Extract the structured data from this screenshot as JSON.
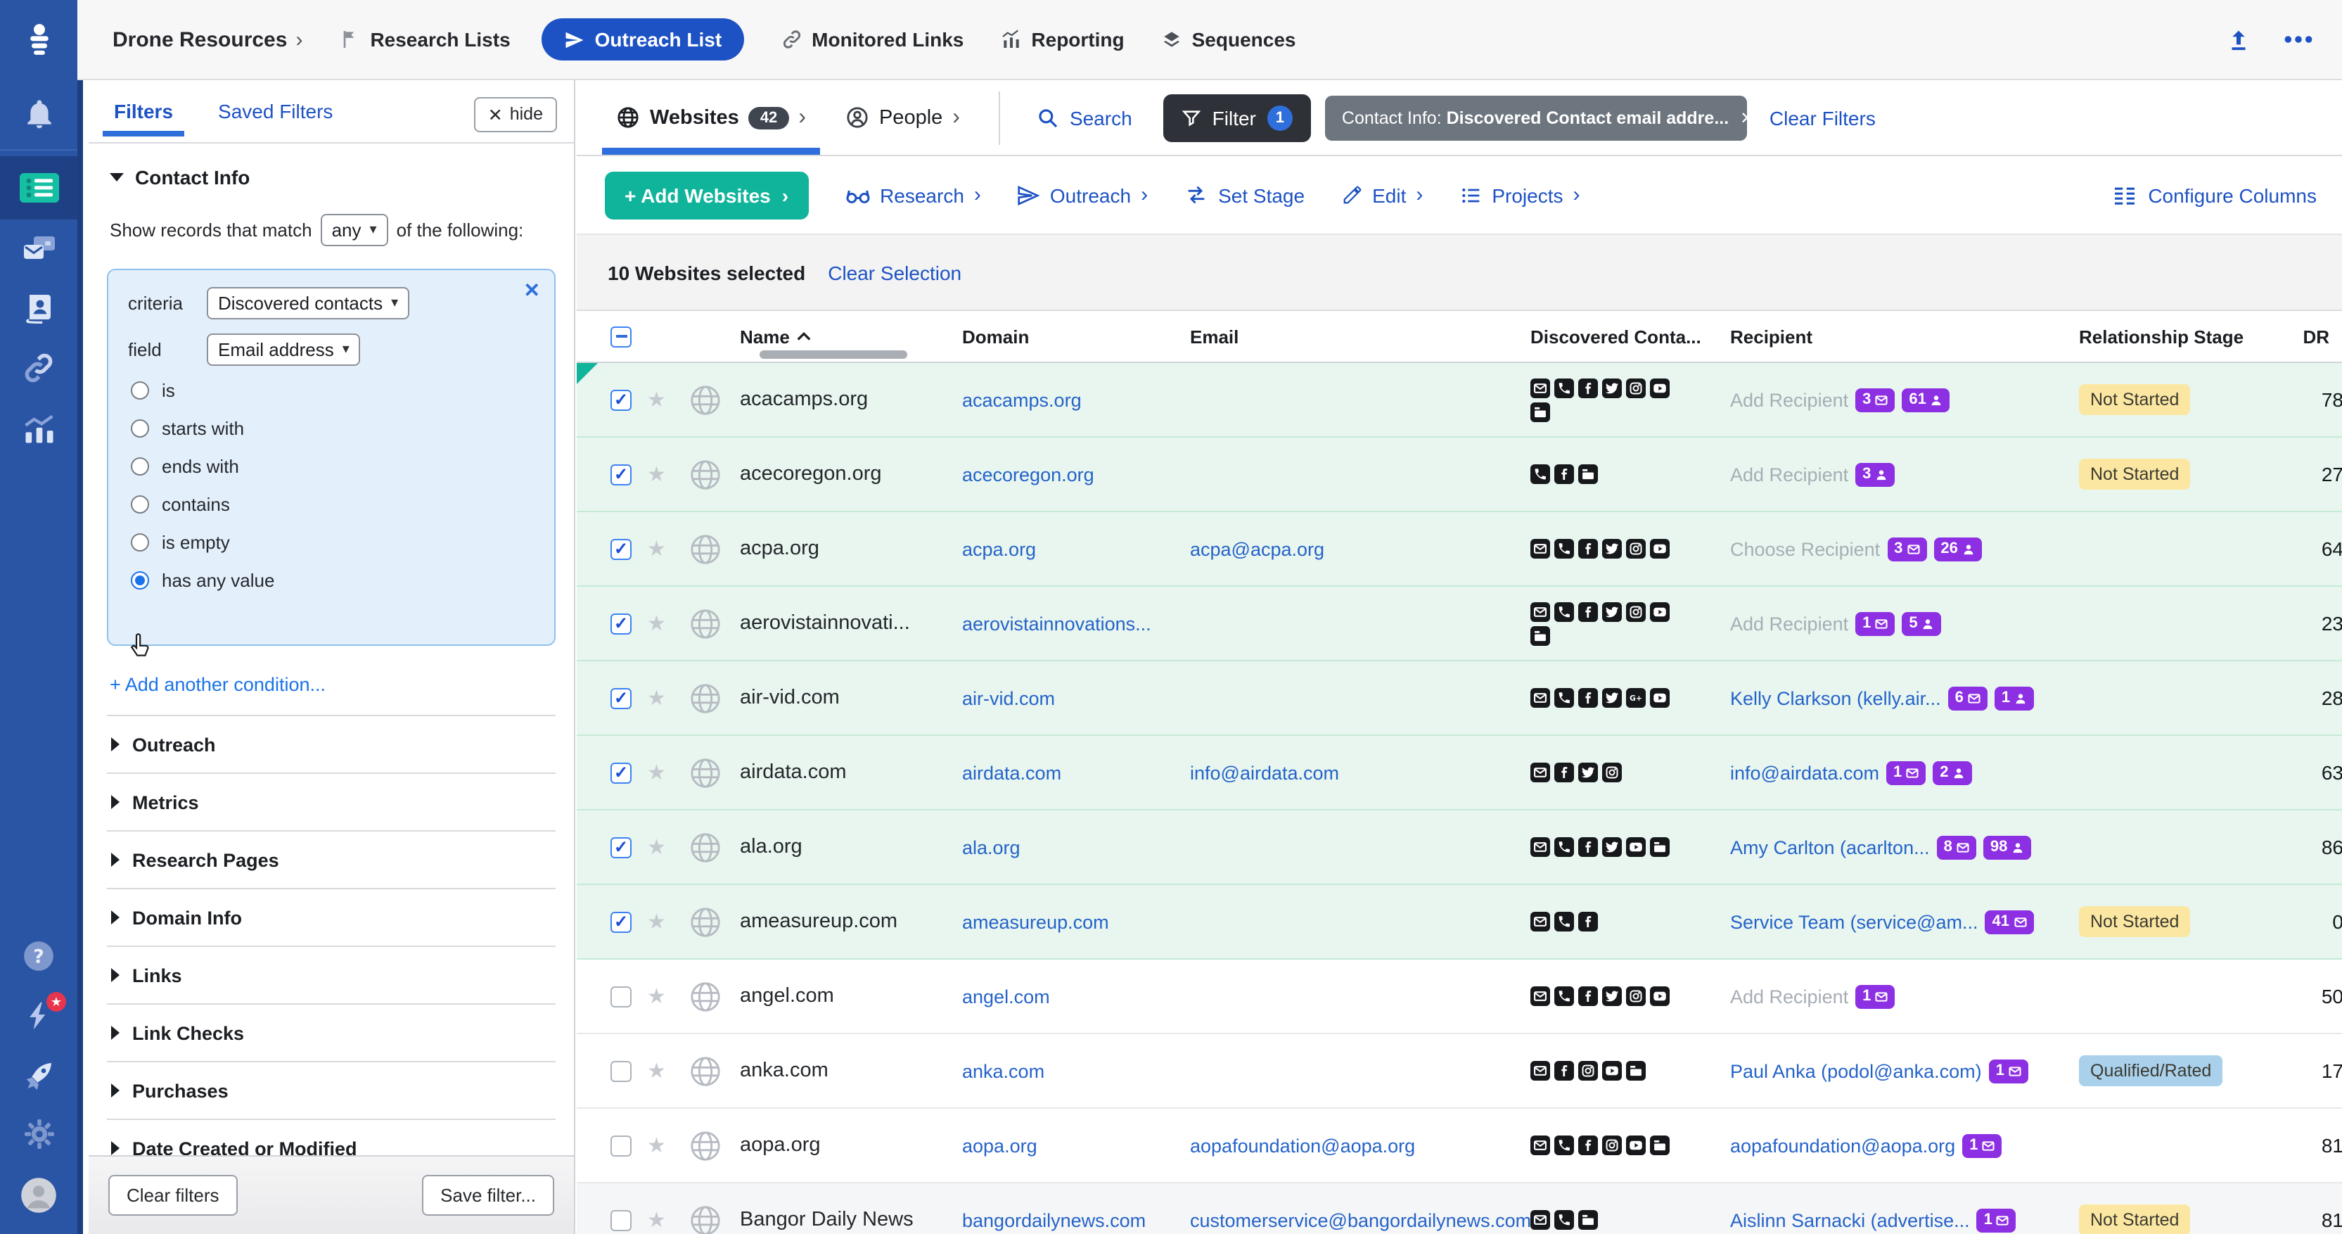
{
  "topnav": {
    "workspace": "Drone Resources",
    "items": [
      {
        "label": "Research Lists",
        "icon": "flag"
      },
      {
        "label": "Outreach List",
        "icon": "send",
        "active": true
      },
      {
        "label": "Monitored Links",
        "icon": "link"
      },
      {
        "label": "Reporting",
        "icon": "chart"
      },
      {
        "label": "Sequences",
        "icon": "layers"
      }
    ],
    "right_icons": [
      "upload-icon",
      "more-dots-icon"
    ]
  },
  "sidebar": {
    "icons": [
      "bell",
      "list-active",
      "email-card",
      "contacts-book",
      "link",
      "bar-chart",
      "help",
      "bolt-star",
      "rocket",
      "gear",
      "avatar"
    ]
  },
  "filters": {
    "tabs": [
      "Filters",
      "Saved Filters"
    ],
    "active_tab": "Filters",
    "hide_label": "hide",
    "open_section": "Contact Info",
    "match_prefix": "Show records that match",
    "match_value": "any",
    "match_suffix": "of the following:",
    "condition": {
      "criteria_label": "criteria",
      "criteria_value": "Discovered contacts",
      "field_label": "field",
      "field_value": "Email address",
      "options": [
        "is",
        "starts with",
        "ends with",
        "contains",
        "is empty",
        "has any value"
      ],
      "selected_option": "has any value"
    },
    "add_condition_label": "+ Add another condition...",
    "sections": [
      "Outreach",
      "Metrics",
      "Research Pages",
      "Domain Info",
      "Links",
      "Link Checks",
      "Purchases",
      "Date Created or Modified"
    ],
    "clear_label": "Clear filters",
    "save_label": "Save filter..."
  },
  "main": {
    "tabs": {
      "websites_label": "Websites",
      "websites_count": "42",
      "people_label": "People",
      "search_label": "Search",
      "filter_label": "Filter",
      "filter_count": "1",
      "chip_prefix": "Contact Info: ",
      "chip_bold": "Discovered Contact email addre...",
      "clear_filters_label": "Clear Filters"
    },
    "toolbar": {
      "add_label": "+ Add Websites",
      "items": [
        {
          "label": "Research",
          "icon": "glasses",
          "chev": true
        },
        {
          "label": "Outreach",
          "icon": "send",
          "chev": true
        },
        {
          "label": "Set Stage",
          "icon": "swap",
          "chev": false
        },
        {
          "label": "Edit",
          "icon": "pencil",
          "chev": true
        },
        {
          "label": "Projects",
          "icon": "listcheck",
          "chev": true
        }
      ],
      "configure_label": "Configure Columns"
    },
    "selection": {
      "text": "10 Websites selected",
      "clear_label": "Clear Selection"
    },
    "table": {
      "columns": [
        "Name",
        "Domain",
        "Email",
        "Discovered Conta...",
        "Recipient",
        "Relationship Stage",
        "DR"
      ],
      "stage_colors": {
        "Not Started": "#fbe7a2",
        "Qualified/Rated": "#a9d1ec"
      },
      "badge_color": "#8d2fe2",
      "rows": [
        {
          "name": "acacamps.org",
          "domain": "acacamps.org",
          "email": "",
          "icons": [
            "email",
            "phone",
            "facebook",
            "twitter",
            "instagram",
            "youtube",
            "card"
          ],
          "recipient": {
            "label": "Add Recipient",
            "link": false,
            "badges": [
              {
                "n": "3",
                "icon": "mail"
              },
              {
                "n": "61",
                "icon": "person"
              }
            ]
          },
          "stage": "Not Started",
          "dr": "78",
          "checked": true
        },
        {
          "name": "acecoregon.org",
          "domain": "acecoregon.org",
          "email": "",
          "icons": [
            "phone",
            "facebook",
            "card"
          ],
          "recipient": {
            "label": "Add Recipient",
            "link": false,
            "badges": [
              {
                "n": "3",
                "icon": "person"
              }
            ]
          },
          "stage": "Not Started",
          "dr": "27",
          "checked": true
        },
        {
          "name": "acpa.org",
          "domain": "acpa.org",
          "email": "acpa@acpa.org",
          "icons": [
            "email",
            "phone",
            "facebook",
            "twitter",
            "instagram",
            "youtube"
          ],
          "recipient": {
            "label": "Choose Recipient",
            "link": false,
            "badges": [
              {
                "n": "3",
                "icon": "mail"
              },
              {
                "n": "26",
                "icon": "person"
              }
            ]
          },
          "stage": "",
          "dr": "64",
          "checked": true
        },
        {
          "name": "aerovistainnovati...",
          "domain": "aerovistainnovations...",
          "email": "",
          "icons": [
            "email",
            "phone",
            "facebook",
            "twitter",
            "instagram",
            "youtube",
            "card"
          ],
          "recipient": {
            "label": "Add Recipient",
            "link": false,
            "badges": [
              {
                "n": "1",
                "icon": "mail"
              },
              {
                "n": "5",
                "icon": "person"
              }
            ]
          },
          "stage": "",
          "dr": "23",
          "checked": true
        },
        {
          "name": "air-vid.com",
          "domain": "air-vid.com",
          "email": "",
          "icons": [
            "email",
            "phone",
            "facebook",
            "twitter",
            "gplus",
            "youtube"
          ],
          "recipient": {
            "label": "Kelly Clarkson (kelly.air...",
            "link": true,
            "badges": [
              {
                "n": "6",
                "icon": "mail"
              },
              {
                "n": "1",
                "icon": "person"
              }
            ]
          },
          "stage": "",
          "dr": "28",
          "checked": true
        },
        {
          "name": "airdata.com",
          "domain": "airdata.com",
          "email": "info@airdata.com",
          "icons": [
            "email",
            "facebook",
            "twitter",
            "instagram"
          ],
          "recipient": {
            "label": "info@airdata.com",
            "link": true,
            "badges": [
              {
                "n": "1",
                "icon": "mail"
              },
              {
                "n": "2",
                "icon": "person"
              }
            ]
          },
          "stage": "",
          "dr": "63",
          "checked": true
        },
        {
          "name": "ala.org",
          "domain": "ala.org",
          "email": "",
          "icons": [
            "email",
            "phone",
            "facebook",
            "twitter",
            "youtube",
            "card"
          ],
          "recipient": {
            "label": "Amy Carlton (acarlton...",
            "link": true,
            "badges": [
              {
                "n": "8",
                "icon": "mail"
              },
              {
                "n": "98",
                "icon": "person"
              }
            ]
          },
          "stage": "",
          "dr": "86",
          "checked": true
        },
        {
          "name": "ameasureup.com",
          "domain": "ameasureup.com",
          "email": "",
          "icons": [
            "email",
            "phone",
            "facebook"
          ],
          "recipient": {
            "label": "Service Team (service@am...",
            "link": true,
            "badges": [
              {
                "n": "41",
                "icon": "mail"
              }
            ]
          },
          "stage": "Not Started",
          "dr": "0",
          "checked": true
        },
        {
          "name": "angel.com",
          "domain": "angel.com",
          "email": "",
          "icons": [
            "email",
            "phone",
            "facebook",
            "twitter",
            "instagram",
            "youtube"
          ],
          "recipient": {
            "label": "Add Recipient",
            "link": false,
            "badges": [
              {
                "n": "1",
                "icon": "mail"
              }
            ]
          },
          "stage": "",
          "dr": "50",
          "checked": false
        },
        {
          "name": "anka.com",
          "domain": "anka.com",
          "email": "",
          "icons": [
            "email",
            "facebook",
            "instagram",
            "youtube",
            "card"
          ],
          "recipient": {
            "label": "Paul Anka (podol@anka.com)",
            "link": true,
            "badges": [
              {
                "n": "1",
                "icon": "mail"
              }
            ]
          },
          "stage": "Qualified/Rated",
          "dr": "17",
          "checked": false
        },
        {
          "name": "aopa.org",
          "domain": "aopa.org",
          "email": "aopafoundation@aopa.org",
          "icons": [
            "email",
            "phone",
            "facebook",
            "instagram",
            "youtube",
            "card"
          ],
          "recipient": {
            "label": "aopafoundation@aopa.org",
            "link": true,
            "badges": [
              {
                "n": "1",
                "icon": "mail"
              }
            ]
          },
          "stage": "",
          "dr": "81",
          "checked": false
        },
        {
          "name": "Bangor Daily News",
          "domain": "bangordailynews.com",
          "email": "customerservice@bangordailynews.com",
          "icons": [
            "email",
            "phone",
            "card"
          ],
          "recipient": {
            "label": "Aislinn Sarnacki (advertise...",
            "link": true,
            "badges": [
              {
                "n": "1",
                "icon": "mail"
              }
            ]
          },
          "stage": "Not Started",
          "dr": "81",
          "checked": false,
          "highlight": true
        }
      ]
    }
  }
}
